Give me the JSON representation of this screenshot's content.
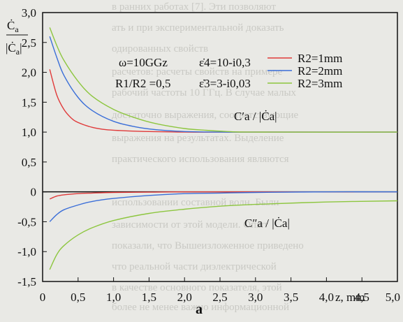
{
  "chart_data": {
    "type": "line",
    "xlabel": "z, mm",
    "ylabel_top": "Ċa / |Ċa|",
    "xlim": [
      0,
      5.0
    ],
    "ylim": [
      -1.5,
      3.0
    ],
    "x_ticks": [
      "0",
      "0,5",
      "1,0",
      "1,5",
      "2,0",
      "2,5",
      "3,0",
      "3,5",
      "4,0",
      "4,5",
      "5,0"
    ],
    "y_ticks": [
      "-1,5",
      "-1,0",
      "-0,5",
      "0",
      "0,5",
      "1,0",
      "1,5",
      "2,0",
      "2,5",
      "3,0"
    ],
    "annotations": {
      "omega": "ω=10GGz",
      "eps4": "ε̇4=10-i0,3",
      "ratio": "R1/R2 =0,5",
      "eps3": "ε̇3=3-i0,03",
      "real_part": "C′a / |Ċa|",
      "imag_part": "C″a / |Ċa|"
    },
    "legend_position": "top-right",
    "series": [
      {
        "name": "R2=1mm",
        "color": "#e03a3a",
        "real": {
          "x": [
            0.1,
            0.2,
            0.3,
            0.4,
            0.5,
            0.7,
            0.9,
            1.2,
            1.5,
            2.0,
            2.5,
            3.0,
            5.0
          ],
          "y": [
            2.05,
            1.62,
            1.38,
            1.24,
            1.16,
            1.08,
            1.04,
            1.02,
            1.01,
            1.0,
            1.0,
            1.0,
            1.0
          ]
        },
        "imag": {
          "x": [
            0.1,
            0.2,
            0.3,
            0.5,
            0.7,
            1.0,
            1.5,
            2.0,
            3.0,
            5.0
          ],
          "y": [
            -0.12,
            -0.07,
            -0.05,
            -0.03,
            -0.02,
            -0.01,
            -0.005,
            0.0,
            0.0,
            0.0
          ]
        }
      },
      {
        "name": "R2=2mm",
        "color": "#3a6ed8",
        "real": {
          "x": [
            0.1,
            0.2,
            0.3,
            0.5,
            0.7,
            1.0,
            1.3,
            1.6,
            2.0,
            2.5,
            3.0,
            5.0
          ],
          "y": [
            2.6,
            2.25,
            1.95,
            1.58,
            1.36,
            1.18,
            1.09,
            1.04,
            1.01,
            1.0,
            1.0,
            1.0
          ]
        },
        "imag": {
          "x": [
            0.1,
            0.2,
            0.3,
            0.5,
            0.7,
            1.0,
            1.5,
            2.0,
            2.5,
            3.0,
            4.0,
            5.0
          ],
          "y": [
            -0.5,
            -0.38,
            -0.3,
            -0.22,
            -0.16,
            -0.11,
            -0.06,
            -0.03,
            -0.02,
            -0.01,
            0.0,
            0.0
          ]
        }
      },
      {
        "name": "R2=3mm",
        "color": "#8dc63f",
        "real": {
          "x": [
            0.1,
            0.2,
            0.3,
            0.5,
            0.7,
            1.0,
            1.3,
            1.6,
            2.0,
            2.3,
            2.6,
            3.0,
            5.0
          ],
          "y": [
            2.75,
            2.45,
            2.2,
            1.85,
            1.6,
            1.38,
            1.24,
            1.14,
            1.06,
            1.03,
            1.01,
            1.0,
            1.0
          ]
        },
        "imag": {
          "x": [
            0.1,
            0.2,
            0.3,
            0.5,
            0.7,
            1.0,
            1.5,
            2.0,
            2.5,
            3.0,
            4.0,
            5.0
          ],
          "y": [
            -1.3,
            -1.05,
            -0.9,
            -0.72,
            -0.6,
            -0.48,
            -0.36,
            -0.29,
            -0.24,
            -0.21,
            -0.17,
            -0.15
          ]
        }
      }
    ]
  },
  "figure_label": "a",
  "background_text": [
    "в ранних работах [7]. Эти позволяют",
    "ать и при экспериментальной доказать",
    "одированных свойств",
    "расчетов: расчеты свойств на примере",
    "рабочий частоты 10 ГГц. В случае малых",
    "достаточно выражения, соответствующие",
    "выражения на результатах. Выделение",
    "практического использования являются",
    "использовании составной волн. Были",
    "зависимости от этой модели. Опыт",
    "показали, что Вышеизложенное приведено",
    "что реальной части диэлектрической",
    "в качестве основного показателя, этой",
    "более не менее важно информационной"
  ]
}
